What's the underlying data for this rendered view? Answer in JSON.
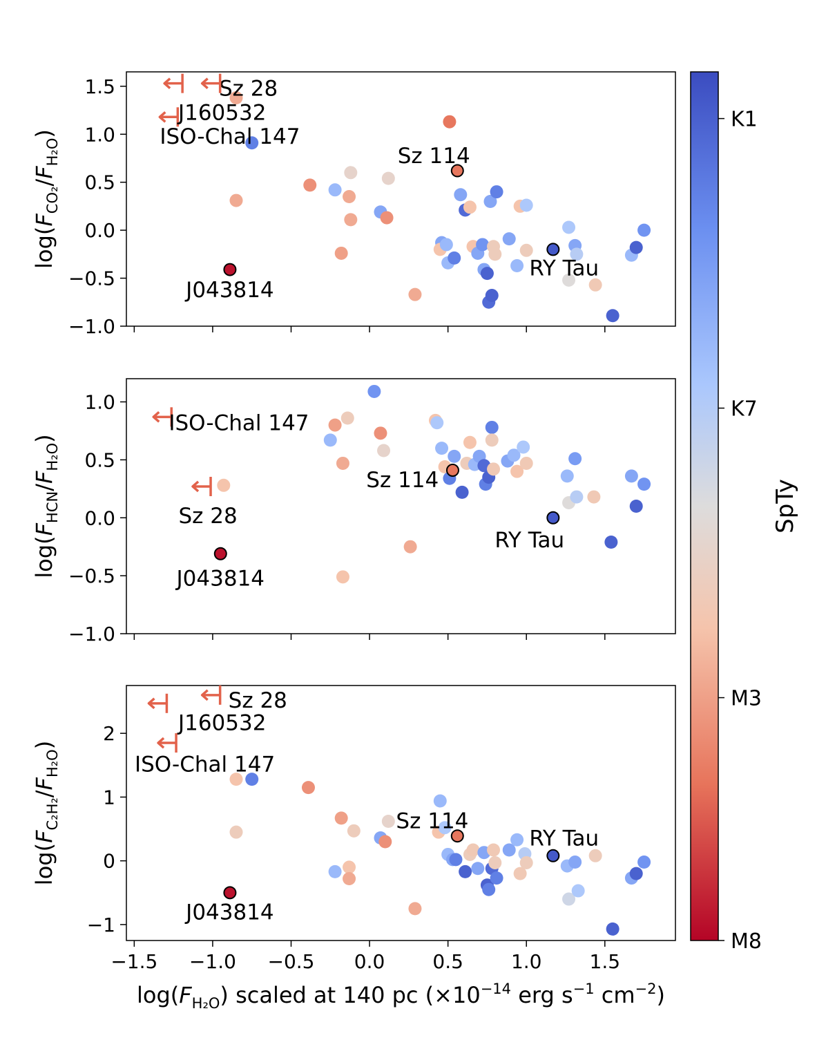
{
  "chart_data": {
    "type": "scatter",
    "colorbar": {
      "label": "SpTy",
      "ticks": [
        {
          "label": "K1",
          "value": 0.92
        },
        {
          "label": "K7",
          "value": 0.61
        },
        {
          "label": "M3",
          "value": 0.3
        },
        {
          "label": "M8",
          "value": 0.04
        }
      ],
      "range": [
        0.04,
        0.97
      ],
      "colors": [
        "#b40426",
        "#e7745b",
        "#f5c4ac",
        "#dddcdc",
        "#aac7fd",
        "#6b8ff0",
        "#3b4cc0"
      ]
    },
    "xaxis": {
      "label_pre": "log(",
      "label_var": "F",
      "label_sub": "H₂O",
      "label_post": ") scaled at 140 pc (×10",
      "label_exp1": "−14",
      "label_mid": " erg s",
      "label_exp2": "−1",
      "label_mid2": " cm",
      "label_exp3": "−2",
      "label_end": ")",
      "xlim": [
        -1.55,
        1.95
      ],
      "ticks": [
        -1.5,
        -1.0,
        -0.5,
        0.0,
        0.5,
        1.0,
        1.5
      ],
      "tick_labels": [
        "−1.5",
        "−1.0",
        "−0.5",
        "0.0",
        "0.5",
        "1.0",
        "1.5"
      ]
    },
    "panels": [
      {
        "ylabel_pre": "log(",
        "ylabel_num": "F",
        "ylabel_num_sub": "CO₂",
        "ylabel_den": "F",
        "ylabel_den_sub": "H₂O",
        "ylim": [
          -1.0,
          1.65
        ],
        "yticks": [
          -1.0,
          -0.5,
          0.0,
          0.5,
          1.0,
          1.5
        ],
        "ytick_labels": [
          "−1.0",
          "−0.5",
          "0.0",
          "0.5",
          "1.0",
          "1.5"
        ],
        "points": [
          [
            -0.85,
            1.38,
            0.3
          ],
          [
            -0.75,
            0.91,
            0.85
          ],
          [
            -0.85,
            0.31,
            0.3
          ],
          [
            -0.38,
            0.47,
            0.25
          ],
          [
            -0.22,
            0.42,
            0.7
          ],
          [
            -0.12,
            0.6,
            0.45
          ],
          [
            -0.13,
            0.35,
            0.3
          ],
          [
            -0.12,
            0.11,
            0.3
          ],
          [
            -0.18,
            -0.24,
            0.28
          ],
          [
            0.07,
            0.19,
            0.75
          ],
          [
            0.11,
            0.13,
            0.25
          ],
          [
            0.12,
            0.54,
            0.45
          ],
          [
            0.29,
            -0.67,
            0.3
          ],
          [
            0.51,
            1.13,
            0.2
          ],
          [
            0.46,
            -0.13,
            0.75
          ],
          [
            0.45,
            -0.2,
            0.35
          ],
          [
            0.49,
            -0.15,
            0.7
          ],
          [
            0.5,
            -0.34,
            0.7
          ],
          [
            0.54,
            -0.29,
            0.85
          ],
          [
            0.58,
            0.37,
            0.75
          ],
          [
            0.61,
            0.21,
            0.9
          ],
          [
            0.64,
            0.24,
            0.35
          ],
          [
            0.66,
            -0.17,
            0.35
          ],
          [
            0.69,
            -0.24,
            0.75
          ],
          [
            0.72,
            -0.15,
            0.8
          ],
          [
            0.73,
            -0.41,
            0.75
          ],
          [
            0.75,
            -0.45,
            0.92
          ],
          [
            0.76,
            -0.75,
            0.9
          ],
          [
            0.77,
            0.3,
            0.75
          ],
          [
            0.78,
            -0.68,
            0.92
          ],
          [
            0.79,
            -0.17,
            0.4
          ],
          [
            0.8,
            -0.25,
            0.4
          ],
          [
            0.81,
            0.4,
            0.85
          ],
          [
            0.89,
            -0.09,
            0.75
          ],
          [
            0.94,
            -0.37,
            0.7
          ],
          [
            0.96,
            0.25,
            0.35
          ],
          [
            1.0,
            0.26,
            0.65
          ],
          [
            1.0,
            -0.21,
            0.4
          ],
          [
            1.27,
            0.03,
            0.65
          ],
          [
            1.27,
            -0.52,
            0.5
          ],
          [
            1.31,
            -0.16,
            0.75
          ],
          [
            1.32,
            -0.25,
            0.62
          ],
          [
            1.44,
            -0.57,
            0.38
          ],
          [
            1.55,
            -0.89,
            0.92
          ],
          [
            1.67,
            -0.26,
            0.7
          ],
          [
            1.7,
            -0.18,
            0.92
          ],
          [
            1.75,
            0.0,
            0.8
          ]
        ],
        "highlight": [
          {
            "x": 0.56,
            "y": 0.62,
            "c": 0.2,
            "name": "Sz 114",
            "dx": -0.15,
            "dy": 0.16
          },
          {
            "x": 1.17,
            "y": -0.2,
            "c": 0.94,
            "name": "RY Tau",
            "dx": 0.07,
            "dy": -0.19
          },
          {
            "x": -0.89,
            "y": -0.41,
            "c": 0.06,
            "name": "J043814",
            "dx": 0.0,
            "dy": -0.21
          }
        ],
        "limits": [
          {
            "x": -1.25,
            "y": 1.53,
            "name": "Sz 28",
            "lx": -0.96,
            "ly": 1.48,
            "anchor": "start"
          },
          {
            "x": -1.01,
            "y": 1.53,
            "name": "",
            "lx": 0,
            "ly": 0,
            "anchor": "start"
          },
          {
            "x": -1.28,
            "y": 1.18,
            "name": "J160532",
            "lx": -1.22,
            "ly": 1.23,
            "anchor": "start"
          },
          {
            "x": -1.28,
            "y": 1.18,
            "name": "ISO-Chal 147",
            "lx": -0.89,
            "ly": 0.98,
            "anchor": "middle"
          }
        ]
      },
      {
        "ylabel_pre": "log(",
        "ylabel_num": "F",
        "ylabel_num_sub": "HCN",
        "ylabel_den": "F",
        "ylabel_den_sub": "H₂O",
        "ylim": [
          -1.0,
          1.2
        ],
        "yticks": [
          -1.0,
          -0.5,
          0.0,
          0.5,
          1.0
        ],
        "ytick_labels": [
          "−1.0",
          "−0.5",
          "0.0",
          "0.5",
          "1.0"
        ],
        "points": [
          [
            -0.22,
            0.8,
            0.28
          ],
          [
            -0.14,
            0.86,
            0.4
          ],
          [
            -0.25,
            0.67,
            0.7
          ],
          [
            -0.17,
            0.47,
            0.3
          ],
          [
            -0.93,
            0.28,
            0.35
          ],
          [
            -0.17,
            -0.51,
            0.35
          ],
          [
            0.03,
            1.09,
            0.8
          ],
          [
            0.07,
            0.73,
            0.25
          ],
          [
            0.09,
            0.58,
            0.45
          ],
          [
            0.26,
            -0.25,
            0.3
          ],
          [
            0.42,
            0.84,
            0.35
          ],
          [
            0.43,
            0.82,
            0.65
          ],
          [
            0.46,
            0.6,
            0.7
          ],
          [
            0.48,
            0.44,
            0.35
          ],
          [
            0.51,
            0.34,
            0.85
          ],
          [
            0.54,
            0.53,
            0.75
          ],
          [
            0.59,
            0.22,
            0.92
          ],
          [
            0.62,
            0.47,
            0.4
          ],
          [
            0.64,
            0.65,
            0.35
          ],
          [
            0.67,
            0.46,
            0.7
          ],
          [
            0.7,
            0.53,
            0.75
          ],
          [
            0.73,
            0.45,
            0.9
          ],
          [
            0.74,
            0.29,
            0.85
          ],
          [
            0.76,
            0.35,
            0.92
          ],
          [
            0.78,
            0.78,
            0.85
          ],
          [
            0.78,
            0.67,
            0.4
          ],
          [
            0.79,
            0.42,
            0.38
          ],
          [
            0.88,
            0.49,
            0.75
          ],
          [
            0.92,
            0.54,
            0.7
          ],
          [
            0.94,
            0.4,
            0.35
          ],
          [
            0.98,
            0.61,
            0.65
          ],
          [
            1.0,
            0.47,
            0.38
          ],
          [
            1.26,
            0.36,
            0.7
          ],
          [
            1.27,
            0.13,
            0.5
          ],
          [
            1.31,
            0.51,
            0.78
          ],
          [
            1.32,
            0.18,
            0.62
          ],
          [
            1.43,
            0.18,
            0.38
          ],
          [
            1.54,
            -0.21,
            0.92
          ],
          [
            1.67,
            0.36,
            0.75
          ],
          [
            1.7,
            0.1,
            0.92
          ],
          [
            1.75,
            0.29,
            0.8
          ]
        ],
        "highlight": [
          {
            "x": 0.53,
            "y": 0.41,
            "c": 0.2,
            "name": "Sz 114",
            "dx": -0.32,
            "dy": -0.08
          },
          {
            "x": 1.17,
            "y": 0.0,
            "c": 0.94,
            "name": "RY Tau",
            "dx": -0.15,
            "dy": -0.19
          },
          {
            "x": -0.95,
            "y": -0.31,
            "c": 0.06,
            "name": "J043814",
            "dx": 0.0,
            "dy": -0.21
          }
        ],
        "limits": [
          {
            "x": -1.32,
            "y": 0.87,
            "name": "ISO-Chal 147",
            "lx": -1.28,
            "ly": 0.82,
            "anchor": "start"
          },
          {
            "x": -1.07,
            "y": 0.27,
            "name": "Sz 28",
            "lx": -1.03,
            "ly": 0.02,
            "anchor": "middle"
          }
        ]
      },
      {
        "ylabel_pre": "log(",
        "ylabel_num": "F",
        "ylabel_num_sub": "C₂H₂",
        "ylabel_den": "F",
        "ylabel_den_sub": "H₂O",
        "ylim": [
          -1.25,
          2.75
        ],
        "yticks": [
          -1,
          0,
          1,
          2
        ],
        "ytick_labels": [
          "−1",
          "0",
          "1",
          "2"
        ],
        "points": [
          [
            -0.85,
            1.28,
            0.35
          ],
          [
            -0.75,
            1.28,
            0.85
          ],
          [
            -0.85,
            0.45,
            0.4
          ],
          [
            -0.39,
            1.15,
            0.25
          ],
          [
            -0.18,
            0.67,
            0.28
          ],
          [
            -0.1,
            0.47,
            0.4
          ],
          [
            -0.13,
            -0.1,
            0.35
          ],
          [
            -0.13,
            -0.28,
            0.3
          ],
          [
            -0.22,
            -0.17,
            0.7
          ],
          [
            0.07,
            0.36,
            0.75
          ],
          [
            0.1,
            0.3,
            0.25
          ],
          [
            0.12,
            0.62,
            0.45
          ],
          [
            0.29,
            -0.75,
            0.3
          ],
          [
            0.45,
            0.94,
            0.7
          ],
          [
            0.44,
            0.45,
            0.35
          ],
          [
            0.48,
            0.52,
            0.65
          ],
          [
            0.5,
            0.1,
            0.7
          ],
          [
            0.53,
            0.02,
            0.75
          ],
          [
            0.55,
            0.02,
            0.85
          ],
          [
            0.61,
            -0.17,
            0.92
          ],
          [
            0.64,
            0.1,
            0.4
          ],
          [
            0.66,
            0.17,
            0.38
          ],
          [
            0.69,
            -0.12,
            0.75
          ],
          [
            0.73,
            0.13,
            0.75
          ],
          [
            0.75,
            -0.38,
            0.92
          ],
          [
            0.76,
            -0.45,
            0.85
          ],
          [
            0.78,
            -0.12,
            0.9
          ],
          [
            0.79,
            0.17,
            0.38
          ],
          [
            0.8,
            -0.03,
            0.4
          ],
          [
            0.81,
            -0.27,
            0.85
          ],
          [
            0.89,
            0.17,
            0.75
          ],
          [
            0.94,
            0.33,
            0.7
          ],
          [
            0.96,
            -0.2,
            0.38
          ],
          [
            0.99,
            0.11,
            0.62
          ],
          [
            1.0,
            -0.03,
            0.4
          ],
          [
            1.26,
            -0.08,
            0.7
          ],
          [
            1.27,
            -0.6,
            0.55
          ],
          [
            1.31,
            -0.02,
            0.75
          ],
          [
            1.33,
            -0.47,
            0.65
          ],
          [
            1.44,
            0.08,
            0.4
          ],
          [
            1.55,
            -1.07,
            0.92
          ],
          [
            1.67,
            -0.27,
            0.75
          ],
          [
            1.7,
            -0.2,
            0.92
          ],
          [
            1.75,
            -0.02,
            0.8
          ]
        ],
        "highlight": [
          {
            "x": 0.56,
            "y": 0.39,
            "c": 0.2,
            "name": "Sz 114",
            "dx": -0.16,
            "dy": 0.24
          },
          {
            "x": 1.17,
            "y": 0.08,
            "c": 0.94,
            "name": "RY Tau",
            "dx": 0.07,
            "dy": 0.28
          },
          {
            "x": -0.89,
            "y": -0.5,
            "c": 0.06,
            "name": "J043814",
            "dx": 0.0,
            "dy": -0.3
          }
        ],
        "limits": [
          {
            "x": -1.01,
            "y": 2.6,
            "name": "Sz 28",
            "lx": -0.9,
            "ly": 2.52,
            "anchor": "start"
          },
          {
            "x": -1.35,
            "y": 2.47,
            "name": "J160532",
            "lx": -1.22,
            "ly": 2.17,
            "anchor": "start"
          },
          {
            "x": -1.29,
            "y": 1.85,
            "name": "ISO-Chal 147",
            "lx": -1.05,
            "ly": 1.52,
            "anchor": "middle"
          }
        ]
      }
    ]
  }
}
